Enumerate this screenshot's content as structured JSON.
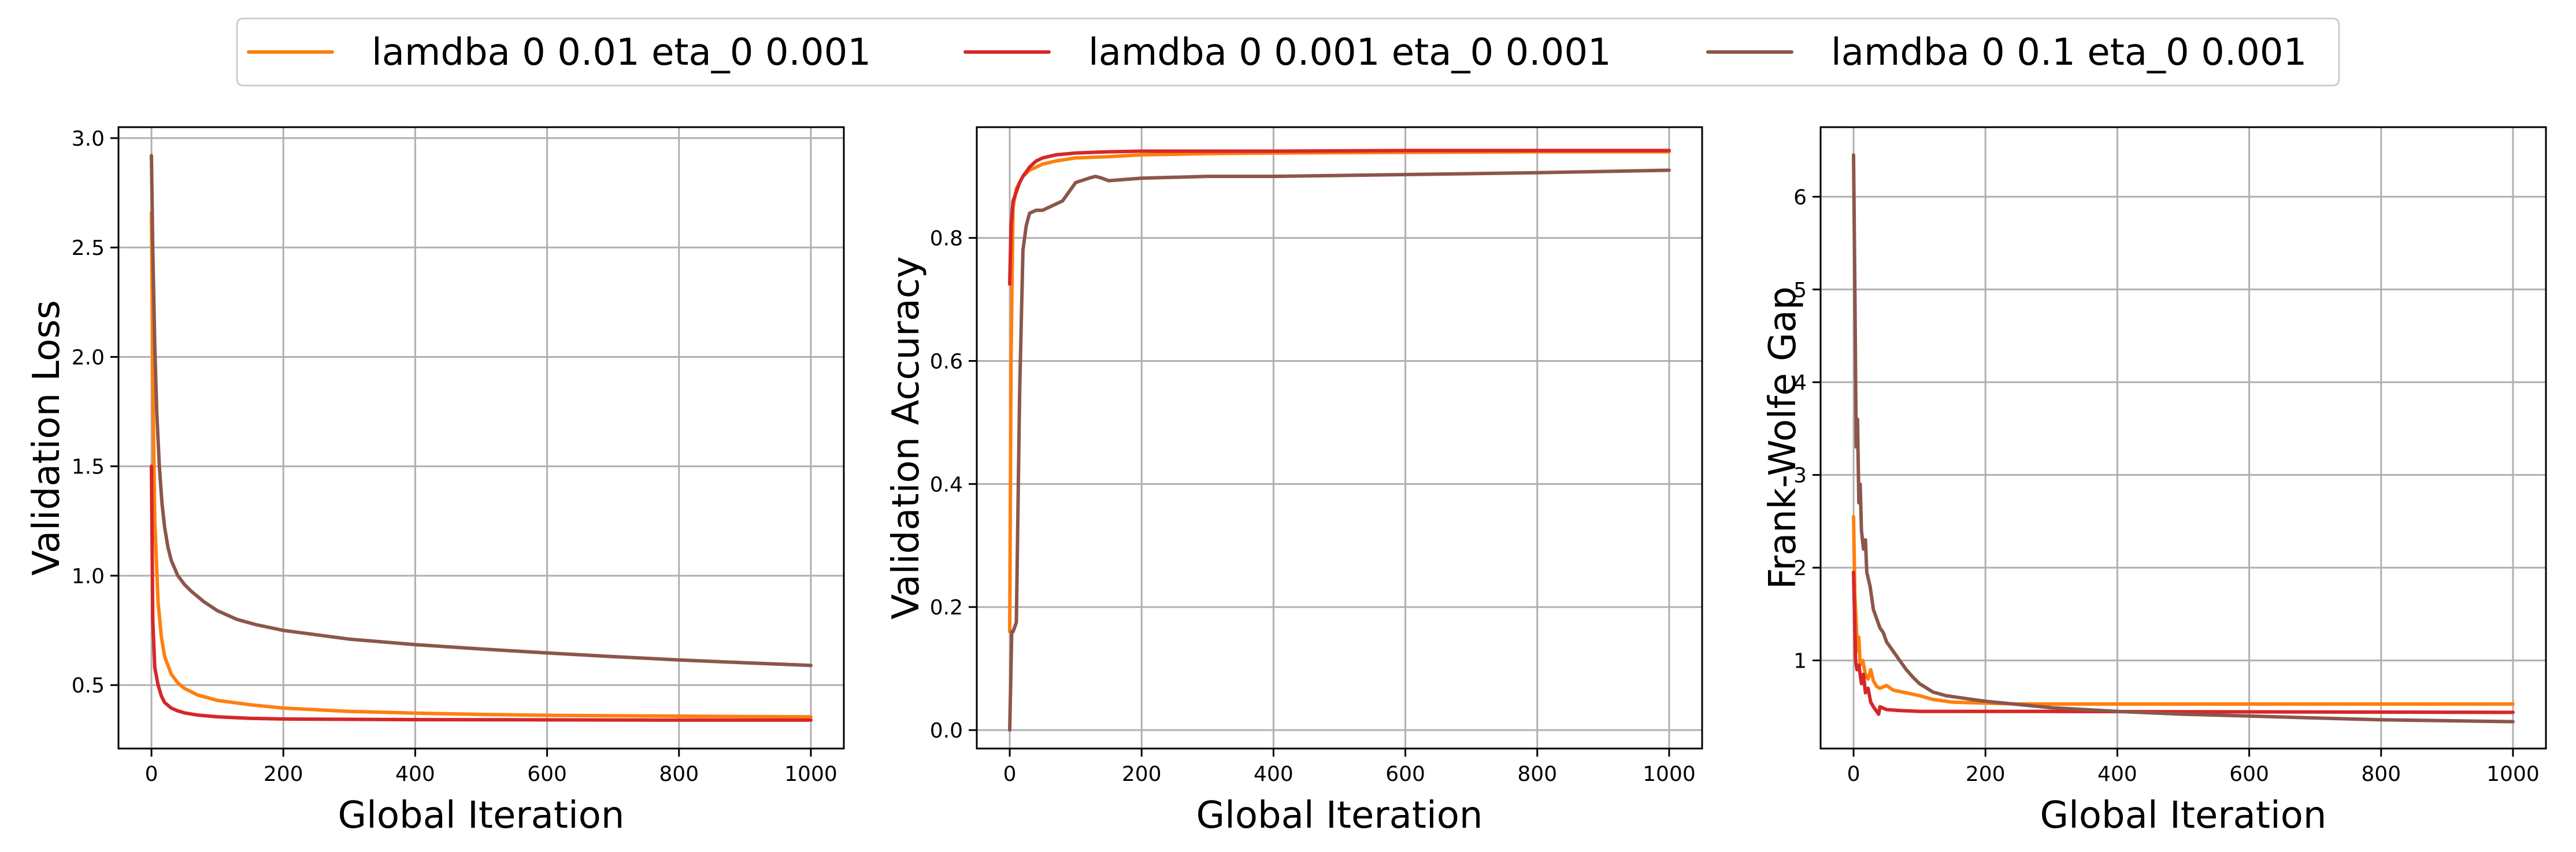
{
  "legend": {
    "entries": [
      {
        "label": "lamdba 0 0.01 eta_0 0.001",
        "color": "#ff7f0e"
      },
      {
        "label": "lamdba 0 0.001 eta_0 0.001",
        "color": "#d62728"
      },
      {
        "label": "lamdba 0 0.1 eta_0 0.001",
        "color": "#8c564b"
      }
    ]
  },
  "chart_data": [
    {
      "type": "line",
      "xlabel": "Global Iteration",
      "ylabel": "Validation Loss",
      "xlim": [
        -50,
        1050
      ],
      "ylim": [
        0.21,
        3.05
      ],
      "xticks": [
        0,
        200,
        400,
        600,
        800,
        1000
      ],
      "xtick_labels": [
        "0",
        "200",
        "400",
        "600",
        "800",
        "1000"
      ],
      "yticks": [
        0.5,
        1.0,
        1.5,
        2.0,
        2.5,
        3.0
      ],
      "ytick_labels": [
        "0.5",
        "1.0",
        "1.5",
        "2.0",
        "2.5",
        "3.0"
      ],
      "grid": true,
      "series": [
        {
          "name": "lamdba 0 0.01 eta_0 0.001",
          "color": "#ff7f0e",
          "x": [
            0,
            2,
            5,
            10,
            15,
            20,
            30,
            40,
            50,
            70,
            100,
            150,
            200,
            300,
            400,
            500,
            600,
            800,
            1000
          ],
          "y": [
            2.66,
            1.9,
            1.25,
            0.88,
            0.72,
            0.63,
            0.55,
            0.51,
            0.485,
            0.455,
            0.43,
            0.41,
            0.395,
            0.38,
            0.372,
            0.366,
            0.362,
            0.358,
            0.355
          ]
        },
        {
          "name": "lamdba 0 0.001 eta_0 0.001",
          "color": "#d62728",
          "x": [
            0,
            2,
            5,
            10,
            15,
            20,
            30,
            40,
            50,
            70,
            100,
            150,
            200,
            400,
            600,
            800,
            1000
          ],
          "y": [
            1.5,
            0.8,
            0.58,
            0.5,
            0.45,
            0.42,
            0.395,
            0.382,
            0.373,
            0.363,
            0.355,
            0.348,
            0.345,
            0.342,
            0.341,
            0.34,
            0.34
          ]
        },
        {
          "name": "lamdba 0 0.1 eta_0 0.001",
          "color": "#8c564b",
          "x": [
            0,
            2,
            5,
            8,
            12,
            16,
            20,
            25,
            30,
            40,
            50,
            60,
            80,
            100,
            130,
            160,
            200,
            250,
            300,
            400,
            500,
            600,
            700,
            800,
            900,
            1000
          ],
          "y": [
            2.92,
            2.5,
            2.05,
            1.75,
            1.5,
            1.33,
            1.22,
            1.13,
            1.07,
            1.0,
            0.96,
            0.93,
            0.88,
            0.84,
            0.8,
            0.775,
            0.75,
            0.73,
            0.71,
            0.685,
            0.665,
            0.647,
            0.63,
            0.615,
            0.602,
            0.59
          ]
        }
      ]
    },
    {
      "type": "line",
      "xlabel": "Global Iteration",
      "ylabel": "Validation Accuracy",
      "xlim": [
        -50,
        1050
      ],
      "ylim": [
        -0.03,
        0.98
      ],
      "xticks": [
        0,
        200,
        400,
        600,
        800,
        1000
      ],
      "xtick_labels": [
        "0",
        "200",
        "400",
        "600",
        "800",
        "1000"
      ],
      "yticks": [
        0.0,
        0.2,
        0.4,
        0.6,
        0.8
      ],
      "ytick_labels": [
        "0.0",
        "0.2",
        "0.4",
        "0.6",
        "0.8"
      ],
      "grid": true,
      "series": [
        {
          "name": "lamdba 0 0.01 eta_0 0.001",
          "color": "#ff7f0e",
          "x": [
            0,
            2,
            5,
            10,
            15,
            20,
            30,
            40,
            50,
            70,
            100,
            150,
            200,
            300,
            400,
            600,
            800,
            1000
          ],
          "y": [
            0.16,
            0.6,
            0.85,
            0.88,
            0.89,
            0.9,
            0.91,
            0.915,
            0.92,
            0.925,
            0.93,
            0.932,
            0.935,
            0.937,
            0.938,
            0.939,
            0.94,
            0.94
          ]
        },
        {
          "name": "lamdba 0 0.001 eta_0 0.001",
          "color": "#d62728",
          "x": [
            0,
            2,
            5,
            10,
            15,
            20,
            30,
            40,
            50,
            70,
            100,
            150,
            200,
            400,
            600,
            800,
            1000
          ],
          "y": [
            0.725,
            0.82,
            0.86,
            0.875,
            0.89,
            0.9,
            0.915,
            0.925,
            0.93,
            0.935,
            0.938,
            0.94,
            0.941,
            0.941,
            0.942,
            0.942,
            0.942
          ]
        },
        {
          "name": "lamdba 0 0.1 eta_0 0.001",
          "color": "#8c564b",
          "x": [
            0,
            3,
            5,
            10,
            15,
            20,
            25,
            30,
            40,
            50,
            60,
            80,
            100,
            120,
            130,
            140,
            150,
            200,
            300,
            400,
            600,
            800,
            1000
          ],
          "y": [
            0.0,
            0.16,
            0.16,
            0.175,
            0.55,
            0.78,
            0.82,
            0.84,
            0.845,
            0.845,
            0.85,
            0.86,
            0.89,
            0.897,
            0.9,
            0.897,
            0.893,
            0.897,
            0.9,
            0.9,
            0.903,
            0.906,
            0.91
          ]
        }
      ]
    },
    {
      "type": "line",
      "xlabel": "Global Iteration",
      "ylabel": "Frank-Wolfe Gap",
      "xlim": [
        -50,
        1050
      ],
      "ylim": [
        0.05,
        6.75
      ],
      "xticks": [
        0,
        200,
        400,
        600,
        800,
        1000
      ],
      "xtick_labels": [
        "0",
        "200",
        "400",
        "600",
        "800",
        "1000"
      ],
      "yticks": [
        1,
        2,
        3,
        4,
        5,
        6
      ],
      "ytick_labels": [
        "1",
        "2",
        "3",
        "4",
        "5",
        "6"
      ],
      "grid": true,
      "series": [
        {
          "name": "lamdba 0 0.01 eta_0 0.001",
          "color": "#ff7f0e",
          "x": [
            0,
            2,
            4,
            6,
            8,
            10,
            14,
            18,
            22,
            26,
            30,
            35,
            40,
            50,
            60,
            80,
            100,
            120,
            150,
            200,
            250,
            300,
            1000
          ],
          "y": [
            2.55,
            1.7,
            1.4,
            1.1,
            1.25,
            0.95,
            1.0,
            0.85,
            0.8,
            0.9,
            0.78,
            0.72,
            0.7,
            0.73,
            0.68,
            0.65,
            0.62,
            0.58,
            0.55,
            0.54,
            0.53,
            0.53,
            0.53
          ]
        },
        {
          "name": "lamdba 0 0.001 eta_0 0.001",
          "color": "#d62728",
          "x": [
            0,
            3,
            5,
            8,
            12,
            15,
            18,
            22,
            26,
            30,
            35,
            38,
            40,
            50,
            70,
            100,
            200,
            300,
            1000
          ],
          "y": [
            1.95,
            1.0,
            0.9,
            0.95,
            0.75,
            0.85,
            0.65,
            0.7,
            0.55,
            0.5,
            0.45,
            0.42,
            0.5,
            0.47,
            0.46,
            0.45,
            0.45,
            0.45,
            0.44
          ]
        },
        {
          "name": "lamdba 0 0.1 eta_0 0.001",
          "color": "#8c564b",
          "x": [
            0,
            2,
            4,
            6,
            8,
            10,
            12,
            15,
            18,
            20,
            25,
            30,
            35,
            40,
            45,
            50,
            60,
            70,
            80,
            90,
            100,
            120,
            140,
            160,
            200,
            300,
            400,
            500,
            600,
            700,
            800,
            900,
            1000
          ],
          "y": [
            6.45,
            5.0,
            3.3,
            3.6,
            2.7,
            2.9,
            2.4,
            2.2,
            2.3,
            1.95,
            1.8,
            1.55,
            1.45,
            1.35,
            1.3,
            1.2,
            1.1,
            1.0,
            0.9,
            0.82,
            0.75,
            0.66,
            0.62,
            0.6,
            0.56,
            0.49,
            0.45,
            0.42,
            0.4,
            0.38,
            0.36,
            0.35,
            0.34
          ]
        }
      ]
    }
  ]
}
